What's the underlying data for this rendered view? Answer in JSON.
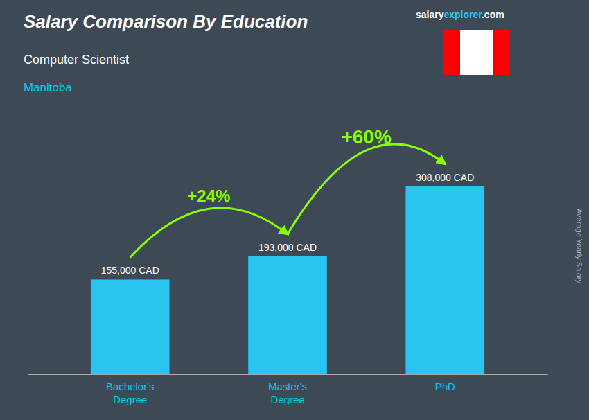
{
  "chart_data": {
    "type": "bar",
    "title": "Salary Comparison By Education",
    "subtitle": "Computer Scientist",
    "annotations": [
      "Manitoba",
      "+24%",
      "+60%",
      "salary",
      "explorer",
      ".com"
    ],
    "ylabel": "Average Yearly Salary",
    "categories": [
      "Bachelor's\nDegree",
      "Master's\nDegree",
      "PhD"
    ],
    "values": [
      155000,
      193000,
      308000
    ],
    "value_labels": [
      "155,000 CAD",
      "193,000 CAD",
      "308,000 CAD"
    ],
    "data_labels": true,
    "color": "#29c4f0",
    "ylim": [
      0,
      420000
    ],
    "grid": false,
    "tick_labels": "x"
  }
}
